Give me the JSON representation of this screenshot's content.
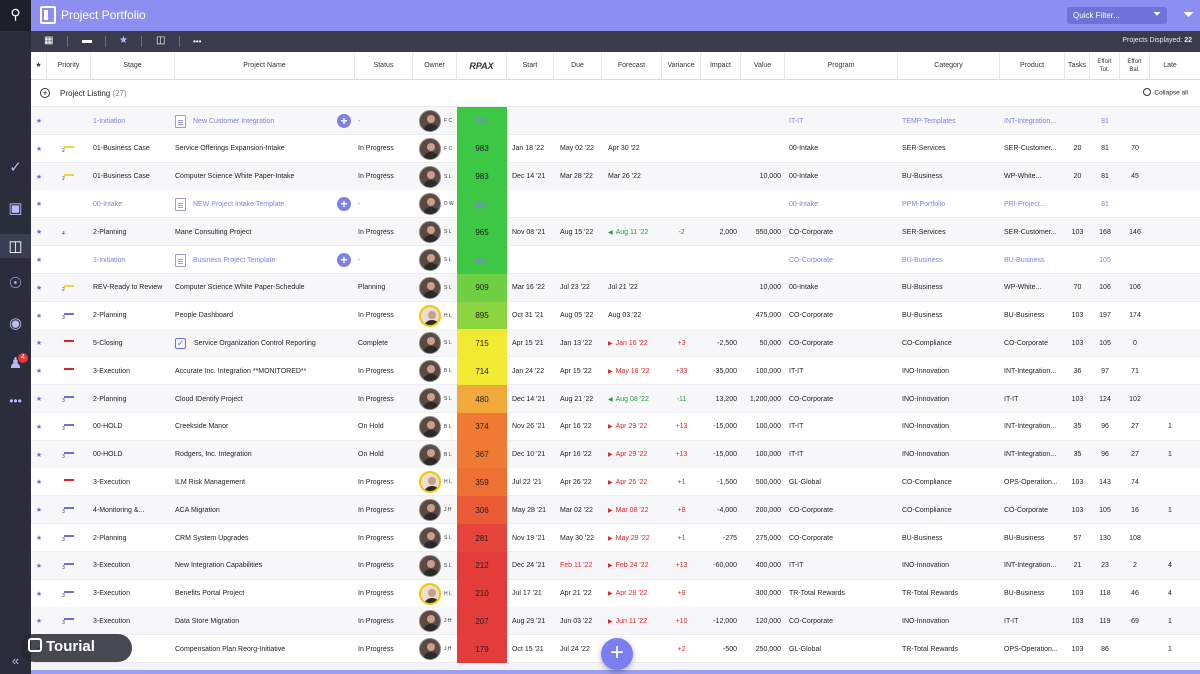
{
  "app": {
    "title": "Project Portfolio",
    "quick_filter_placeholder": "Quick Filter...",
    "projects_displayed_label": "Projects Displayed:",
    "projects_displayed_count": "22"
  },
  "rail": {
    "icons": [
      "search-icon",
      "check-circle-icon",
      "briefcase-icon",
      "portfolio-icon",
      "hierarchy-icon",
      "camera-icon",
      "bell-icon",
      "more-icon"
    ],
    "notification_count": "4",
    "collapse": "«"
  },
  "toolbar": {
    "icons": [
      "grid-view-icon",
      "minus-icon",
      "star-icon",
      "column-icon",
      "more-icon"
    ]
  },
  "columns": {
    "star": "★",
    "priority": "Priority",
    "stage": "Stage",
    "project_name": "Project Name",
    "status": "Status",
    "owner": "Owner",
    "rpax": "RPAX",
    "start": "Start",
    "due": "Due",
    "forecast": "Forecast",
    "variance": "Variance",
    "impact": "Impact",
    "value": "Value",
    "program": "Program",
    "category": "Category",
    "product": "Product",
    "tasks": "Tasks",
    "effort_tot": "Effort Tot.",
    "effort_bal": "Effort Bal.",
    "late": "Late"
  },
  "listing": {
    "label": "Project Listing",
    "count": "(27)",
    "collapse_all": "Collapse all"
  },
  "colors": {
    "accent": "#8d8ff0",
    "rail": "#2b2d3c",
    "toolbar": "#3a3c4d"
  },
  "rows": [
    {
      "template": true,
      "priority_bar": "",
      "priority_num": "",
      "stage": "1-Initiation",
      "name": "New Customer Integration",
      "name_icon": "doc",
      "add": true,
      "status": "-",
      "owner": "F C",
      "avatar_ring": false,
      "rpax": "984",
      "rpax_color": "#3cc744",
      "start": "",
      "due": "",
      "forecast": "",
      "forecast_dir": "",
      "variance": "",
      "impact": "",
      "value": "",
      "program": "IT-IT",
      "category": "TEMP-Templates",
      "product": "INT-Integration...",
      "tasks": "",
      "effort_tot": "81",
      "effort_bal": "",
      "late": ""
    },
    {
      "template": false,
      "priority_bar": "#f2d33a",
      "priority_num": "2",
      "stage": "01-Business Case",
      "name": "Service Offerings Expansion-Intake",
      "name_icon": "",
      "add": false,
      "status": "In Progress",
      "owner": "F C",
      "avatar_ring": false,
      "rpax": "983",
      "rpax_color": "#3cc744",
      "start": "Jan 18 '22",
      "due": "May 02 '22",
      "forecast": "Apr 30 '22",
      "forecast_dir": "",
      "variance": "",
      "impact": "",
      "value": "",
      "program": "00-Intake",
      "category": "SER-Services",
      "product": "SER-Customer...",
      "tasks": "20",
      "effort_tot": "81",
      "effort_bal": "70",
      "late": ""
    },
    {
      "template": false,
      "priority_bar": "#f2d33a",
      "priority_num": "2",
      "stage": "01-Business Case",
      "name": "Computer Science White Paper-Intake",
      "name_icon": "",
      "add": false,
      "status": "In Progress",
      "owner": "S L",
      "avatar_ring": false,
      "rpax": "983",
      "rpax_color": "#3cc744",
      "start": "Dec 14 '21",
      "due": "Mar 28 '22",
      "forecast": "Mar 26 '22",
      "forecast_dir": "",
      "variance": "",
      "impact": "",
      "value": "10,000",
      "program": "00-Intake",
      "category": "BU-Business",
      "product": "WP-White...",
      "tasks": "20",
      "effort_tot": "81",
      "effort_bal": "45",
      "late": ""
    },
    {
      "template": true,
      "priority_bar": "",
      "priority_num": "",
      "stage": "00-Intake",
      "name": "NEW Project Intake Template",
      "name_icon": "doc",
      "add": true,
      "status": "-",
      "owner": "D W",
      "avatar_ring": false,
      "rpax": "983",
      "rpax_color": "#3cc744",
      "start": "",
      "due": "",
      "forecast": "",
      "forecast_dir": "",
      "variance": "",
      "impact": "",
      "value": "",
      "program": "00-Intake",
      "category": "PPM-Portfolio",
      "product": "PRI-Project...",
      "tasks": "",
      "effort_tot": "81",
      "effort_bal": "",
      "late": ""
    },
    {
      "template": false,
      "priority_bar": "",
      "priority_num": "4",
      "stage": "2-Planning",
      "name": "Mane Consulting Project",
      "name_icon": "",
      "add": false,
      "status": "In Progress",
      "owner": "S L",
      "avatar_ring": false,
      "rpax": "965",
      "rpax_color": "#3cc744",
      "start": "Nov 08 '21",
      "due": "Aug 15 '22",
      "forecast": "Aug 11 '22",
      "forecast_dir": "early",
      "variance": "-2",
      "impact": "2,000",
      "value": "550,000",
      "program": "CO-Corporate",
      "category": "SER-Services",
      "product": "SER-Customer...",
      "tasks": "103",
      "effort_tot": "168",
      "effort_bal": "146",
      "late": ""
    },
    {
      "template": true,
      "priority_bar": "",
      "priority_num": "",
      "stage": "1-Initiation",
      "name": "Business Project Template",
      "name_icon": "doc",
      "add": true,
      "status": "-",
      "owner": "S L",
      "avatar_ring": false,
      "rpax": "965",
      "rpax_color": "#3cc744",
      "start": "",
      "due": "",
      "forecast": "",
      "forecast_dir": "",
      "variance": "",
      "impact": "",
      "value": "",
      "program": "CO-Corporate",
      "category": "BU-Business",
      "product": "BU-Business",
      "tasks": "",
      "effort_tot": "105",
      "effort_bal": "",
      "late": ""
    },
    {
      "template": false,
      "priority_bar": "#f2d33a",
      "priority_num": "2",
      "stage": "REV-Ready to Review",
      "name": "Computer Science White Paper-Schedule",
      "name_icon": "",
      "add": false,
      "status": "Planning",
      "owner": "S L",
      "avatar_ring": false,
      "rpax": "909",
      "rpax_color": "#6fd043",
      "start": "Mar 16 '22",
      "due": "Jul 23 '22",
      "forecast": "Jul 21 '22",
      "forecast_dir": "",
      "variance": "",
      "impact": "",
      "value": "10,000",
      "program": "00-Intake",
      "category": "BU-Business",
      "product": "WP-White...",
      "tasks": "70",
      "effort_tot": "106",
      "effort_bal": "106",
      "late": ""
    },
    {
      "template": false,
      "priority_bar": "#6d70d6",
      "priority_num": "3",
      "stage": "2-Planning",
      "name": "People Dashboard",
      "name_icon": "",
      "add": false,
      "status": "In Progress",
      "owner": "H L",
      "avatar_ring": true,
      "rpax": "895",
      "rpax_color": "#8cd440",
      "start": "Oct 31 '21",
      "due": "Aug 05 '22",
      "forecast": "Aug 03 '22",
      "forecast_dir": "",
      "variance": "",
      "impact": "",
      "value": "475,000",
      "program": "CO-Corporate",
      "category": "BU-Business",
      "product": "BU-Business",
      "tasks": "103",
      "effort_tot": "197",
      "effort_bal": "174",
      "late": ""
    },
    {
      "template": false,
      "priority_bar": "#d9262a",
      "priority_num": "",
      "stage": "5-Closing",
      "name": "Service Organization Control Reporting",
      "name_icon": "check",
      "add": false,
      "status": "Complete",
      "owner": "S L",
      "avatar_ring": false,
      "rpax": "715",
      "rpax_color": "#f1ea33",
      "start": "Apr 15 '21",
      "due": "Jan 13 '22",
      "forecast": "Jan 16 '22",
      "forecast_dir": "late",
      "variance": "+3",
      "impact": "-2,500",
      "value": "50,000",
      "program": "CO-Corporate",
      "category": "CO-Compliance",
      "product": "CO-Corporate",
      "tasks": "103",
      "effort_tot": "105",
      "effort_bal": "0",
      "late": ""
    },
    {
      "template": false,
      "priority_bar": "#d9262a",
      "priority_num": "",
      "stage": "3-Execution",
      "name": "Accurate Inc. Integration **MONITORED**",
      "name_icon": "",
      "add": false,
      "status": "In Progress",
      "owner": "B L",
      "avatar_ring": false,
      "rpax": "714",
      "rpax_color": "#f1ea33",
      "start": "Jan 24 '22",
      "due": "Apr 15 '22",
      "forecast": "May 18 '22",
      "forecast_dir": "late",
      "variance": "+33",
      "impact": "-35,000",
      "value": "100,000",
      "program": "IT-IT",
      "category": "INO-Innovation",
      "product": "INT-Integration...",
      "tasks": "36",
      "effort_tot": "97",
      "effort_bal": "71",
      "late": ""
    },
    {
      "template": false,
      "priority_bar": "#6d70d6",
      "priority_num": "3",
      "stage": "2-Planning",
      "name": "Cloud IDentify Project",
      "name_icon": "",
      "add": false,
      "status": "In Progress",
      "owner": "S L",
      "avatar_ring": false,
      "rpax": "480",
      "rpax_color": "#f2a93b",
      "start": "Dec 14 '21",
      "due": "Aug 21 '22",
      "forecast": "Aug 08 '22",
      "forecast_dir": "early",
      "variance": "-11",
      "impact": "13,200",
      "value": "1,200,000",
      "program": "CO-Corporate",
      "category": "INO-Innovation",
      "product": "IT-IT",
      "tasks": "103",
      "effort_tot": "124",
      "effort_bal": "102",
      "late": ""
    },
    {
      "template": false,
      "priority_bar": "#6d70d6",
      "priority_num": "3",
      "stage": "00-HOLD",
      "name": "Creekside Manor",
      "name_icon": "",
      "add": false,
      "status": "On Hold",
      "owner": "B L",
      "avatar_ring": false,
      "rpax": "374",
      "rpax_color": "#ee7a33",
      "start": "Nov 26 '21",
      "due": "Apr 16 '22",
      "forecast": "Apr 29 '22",
      "forecast_dir": "late",
      "variance": "+13",
      "impact": "-15,000",
      "value": "100,000",
      "program": "IT-IT",
      "category": "INO-Innovation",
      "product": "INT-Integration...",
      "tasks": "35",
      "effort_tot": "96",
      "effort_bal": "27",
      "late": "1"
    },
    {
      "template": false,
      "priority_bar": "#6d70d6",
      "priority_num": "3",
      "stage": "00-HOLD",
      "name": "Rodgers, Inc. Integration",
      "name_icon": "",
      "add": false,
      "status": "On Hold",
      "owner": "B L",
      "avatar_ring": false,
      "rpax": "367",
      "rpax_color": "#ee7a33",
      "start": "Dec 10 '21",
      "due": "Apr 16 '22",
      "forecast": "Apr 29 '22",
      "forecast_dir": "late",
      "variance": "+13",
      "impact": "-15,000",
      "value": "100,000",
      "program": "IT-IT",
      "category": "INO-Innovation",
      "product": "INT-Integration...",
      "tasks": "35",
      "effort_tot": "96",
      "effort_bal": "27",
      "late": "1"
    },
    {
      "template": false,
      "priority_bar": "#d9262a",
      "priority_num": "",
      "stage": "3-Execution",
      "name": "ILM Risk Management",
      "name_icon": "",
      "add": false,
      "status": "In Progress",
      "owner": "H L",
      "avatar_ring": true,
      "rpax": "359",
      "rpax_color": "#ee7033",
      "start": "Jul 22 '21",
      "due": "Apr 26 '22",
      "forecast": "Apr 25 '22",
      "forecast_dir": "late",
      "variance": "+1",
      "impact": "-1,500",
      "value": "500,000",
      "program": "GL-Global",
      "category": "CO-Compliance",
      "product": "OPS-Operation...",
      "tasks": "103",
      "effort_tot": "143",
      "effort_bal": "74",
      "late": ""
    },
    {
      "template": false,
      "priority_bar": "#6d70d6",
      "priority_num": "3",
      "stage": "4-Monitoring &...",
      "name": "ACA Migration",
      "name_icon": "",
      "add": false,
      "status": "In Progress",
      "owner": "J H",
      "avatar_ring": false,
      "rpax": "306",
      "rpax_color": "#e95a35",
      "start": "May 28 '21",
      "due": "Mar 02 '22",
      "forecast": "Mar 08 '22",
      "forecast_dir": "late",
      "variance": "+8",
      "impact": "-4,000",
      "value": "200,000",
      "program": "CO-Corporate",
      "category": "CO-Compliance",
      "product": "CO-Corporate",
      "tasks": "103",
      "effort_tot": "105",
      "effort_bal": "16",
      "late": "1"
    },
    {
      "template": false,
      "priority_bar": "#6d70d6",
      "priority_num": "3",
      "stage": "2-Planning",
      "name": "CRM System Upgrades",
      "name_icon": "",
      "add": false,
      "status": "In Progress",
      "owner": "S L",
      "avatar_ring": false,
      "rpax": "281",
      "rpax_color": "#e5453a",
      "start": "Nov 19 '21",
      "due": "May 30 '22",
      "forecast": "May 29 '22",
      "forecast_dir": "late",
      "variance": "+1",
      "impact": "-275",
      "value": "275,000",
      "program": "CO-Corporate",
      "category": "BU-Business",
      "product": "BU-Business",
      "tasks": "57",
      "effort_tot": "130",
      "effort_bal": "108",
      "late": ""
    },
    {
      "template": false,
      "priority_bar": "#6d70d6",
      "priority_num": "3",
      "stage": "3-Execution",
      "name": "New Integration Capabilities",
      "name_icon": "",
      "add": false,
      "status": "In Progress",
      "owner": "S L",
      "avatar_ring": false,
      "rpax": "212",
      "rpax_color": "#e43b3b",
      "start": "Dec 24 '21",
      "start_red": false,
      "due": "Feb 11 '22",
      "due_red": true,
      "forecast": "Feb 24 '22",
      "forecast_dir": "late",
      "variance": "+13",
      "impact": "-60,000",
      "value": "400,000",
      "program": "IT-IT",
      "category": "INO-Innovation",
      "product": "INT-Integration...",
      "tasks": "21",
      "effort_tot": "23",
      "effort_bal": "2",
      "late": "4"
    },
    {
      "template": false,
      "priority_bar": "#6d70d6",
      "priority_num": "3",
      "stage": "3-Execution",
      "name": "Benefits Portal Project",
      "name_icon": "",
      "add": false,
      "status": "In Progress",
      "owner": "H L",
      "avatar_ring": true,
      "rpax": "210",
      "rpax_color": "#e43b3b",
      "start": "Jul 17 '21",
      "due": "Apr 21 '22",
      "forecast": "Apr 28 '22",
      "forecast_dir": "late",
      "variance": "+9",
      "impact": "",
      "value": "300,000",
      "program": "TR-Total Rewards",
      "category": "TR-Total Rewards",
      "product": "BU-Business",
      "tasks": "103",
      "effort_tot": "118",
      "effort_bal": "46",
      "late": "4"
    },
    {
      "template": false,
      "priority_bar": "#6d70d6",
      "priority_num": "3",
      "stage": "3-Execution",
      "name": "Data Store Migration",
      "name_icon": "",
      "add": false,
      "status": "In Progress",
      "owner": "J H",
      "avatar_ring": false,
      "rpax": "207",
      "rpax_color": "#e43b3b",
      "start": "Aug 29 '21",
      "due": "Jun 03 '22",
      "forecast": "Jun 11 '22",
      "forecast_dir": "late",
      "variance": "+10",
      "impact": "-12,000",
      "value": "120,000",
      "program": "CO-Corporate",
      "category": "INO-Innovation",
      "product": "IT-IT",
      "tasks": "103",
      "effort_tot": "119",
      "effort_bal": "69",
      "late": "1"
    },
    {
      "template": false,
      "priority_bar": "#6d70d6",
      "priority_num": "3",
      "stage": "",
      "name": "Compensation Plan Reorg-Initiative",
      "name_icon": "",
      "add": false,
      "status": "In Progress",
      "owner": "J H",
      "avatar_ring": false,
      "rpax": "179",
      "rpax_color": "#e43b3b",
      "start": "Oct 15 '21",
      "due": "Jul 24 '22",
      "forecast": "",
      "forecast_dir": "late",
      "variance": "+2",
      "impact": "-500",
      "value": "250,000",
      "program": "GL-Global",
      "category": "TR-Total Rewards",
      "product": "OPS-Operation...",
      "tasks": "103",
      "effort_tot": "86",
      "effort_bal": "",
      "late": "1"
    }
  ],
  "overlay": {
    "tourial_label": "Tourial",
    "fab_label": "+"
  }
}
